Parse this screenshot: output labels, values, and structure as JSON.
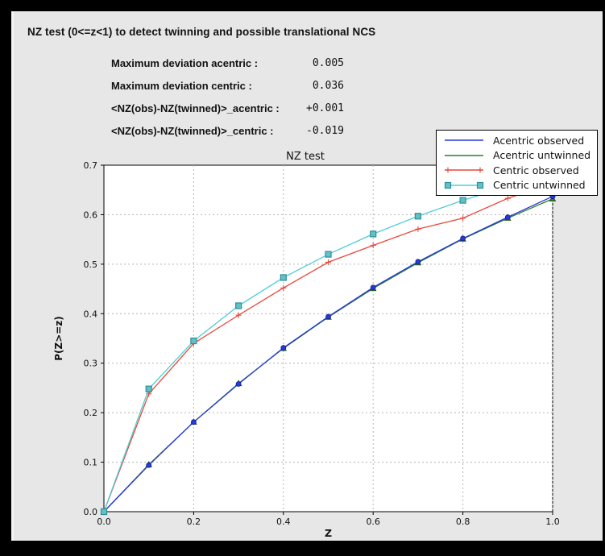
{
  "header": {
    "title": "NZ test (0<=z<1) to detect twinning and possible translational NCS"
  },
  "stats": {
    "rows": [
      {
        "label": "Maximum deviation acentric :",
        "value": "0.005"
      },
      {
        "label": "Maximum deviation centric :",
        "value": "0.036"
      },
      {
        "label": "<NZ(obs)-NZ(twinned)>_acentric :",
        "value": "+0.001"
      },
      {
        "label": "<NZ(obs)-NZ(twinned)>_centric :",
        "value": "-0.019"
      }
    ]
  },
  "chart_data": {
    "type": "line",
    "title": "NZ test",
    "xlabel": "Z",
    "ylabel": "P(Z>=z)",
    "xlim": [
      0.0,
      1.0
    ],
    "ylim": [
      0.0,
      0.7
    ],
    "xticks": [
      "0.0",
      "0.2",
      "0.4",
      "0.6",
      "0.8",
      "1.0"
    ],
    "yticks": [
      "0.0",
      "0.1",
      "0.2",
      "0.3",
      "0.4",
      "0.5",
      "0.6",
      "0.7"
    ],
    "grid": true,
    "legend_position": "top-right-overlapping-axes",
    "x": [
      0.0,
      0.1,
      0.2,
      0.3,
      0.4,
      0.5,
      0.6,
      0.7,
      0.8,
      0.9,
      1.0
    ],
    "series": [
      {
        "name": "Acentric observed",
        "color": "#2739d8",
        "marker": "circle",
        "marker_fill": "#2739d8",
        "marker_edge": "#161f8a",
        "values": [
          0.0,
          0.094,
          0.181,
          0.258,
          0.331,
          0.394,
          0.453,
          0.505,
          0.552,
          0.595,
          0.637
        ]
      },
      {
        "name": "Acentric untwinned",
        "color": "#2f7d2b",
        "marker": "triangle",
        "marker_fill": "#2f7d2b",
        "marker_edge": "#1e5a1c",
        "values": [
          0.0,
          0.095,
          0.181,
          0.259,
          0.33,
          0.393,
          0.451,
          0.503,
          0.551,
          0.593,
          0.632
        ]
      },
      {
        "name": "Centric observed",
        "color": "#e8483b",
        "marker": "plus",
        "marker_fill": "#e8483b",
        "marker_edge": "#e8483b",
        "values": [
          0.0,
          0.238,
          0.34,
          0.397,
          0.452,
          0.504,
          0.538,
          0.571,
          0.593,
          0.633,
          0.664
        ]
      },
      {
        "name": "Centric untwinned",
        "color": "#4ecdd4",
        "marker": "square",
        "marker_fill": "#63c1c6",
        "marker_edge": "#2e8f98",
        "values": [
          0.0,
          0.248,
          0.345,
          0.416,
          0.473,
          0.52,
          0.561,
          0.597,
          0.629,
          0.657,
          0.683
        ]
      }
    ],
    "colors": {
      "plot_background": "#ffffff",
      "window_background": "#e7e7e7",
      "grid": "#b5b5b5",
      "axes_border": "#000000"
    }
  }
}
